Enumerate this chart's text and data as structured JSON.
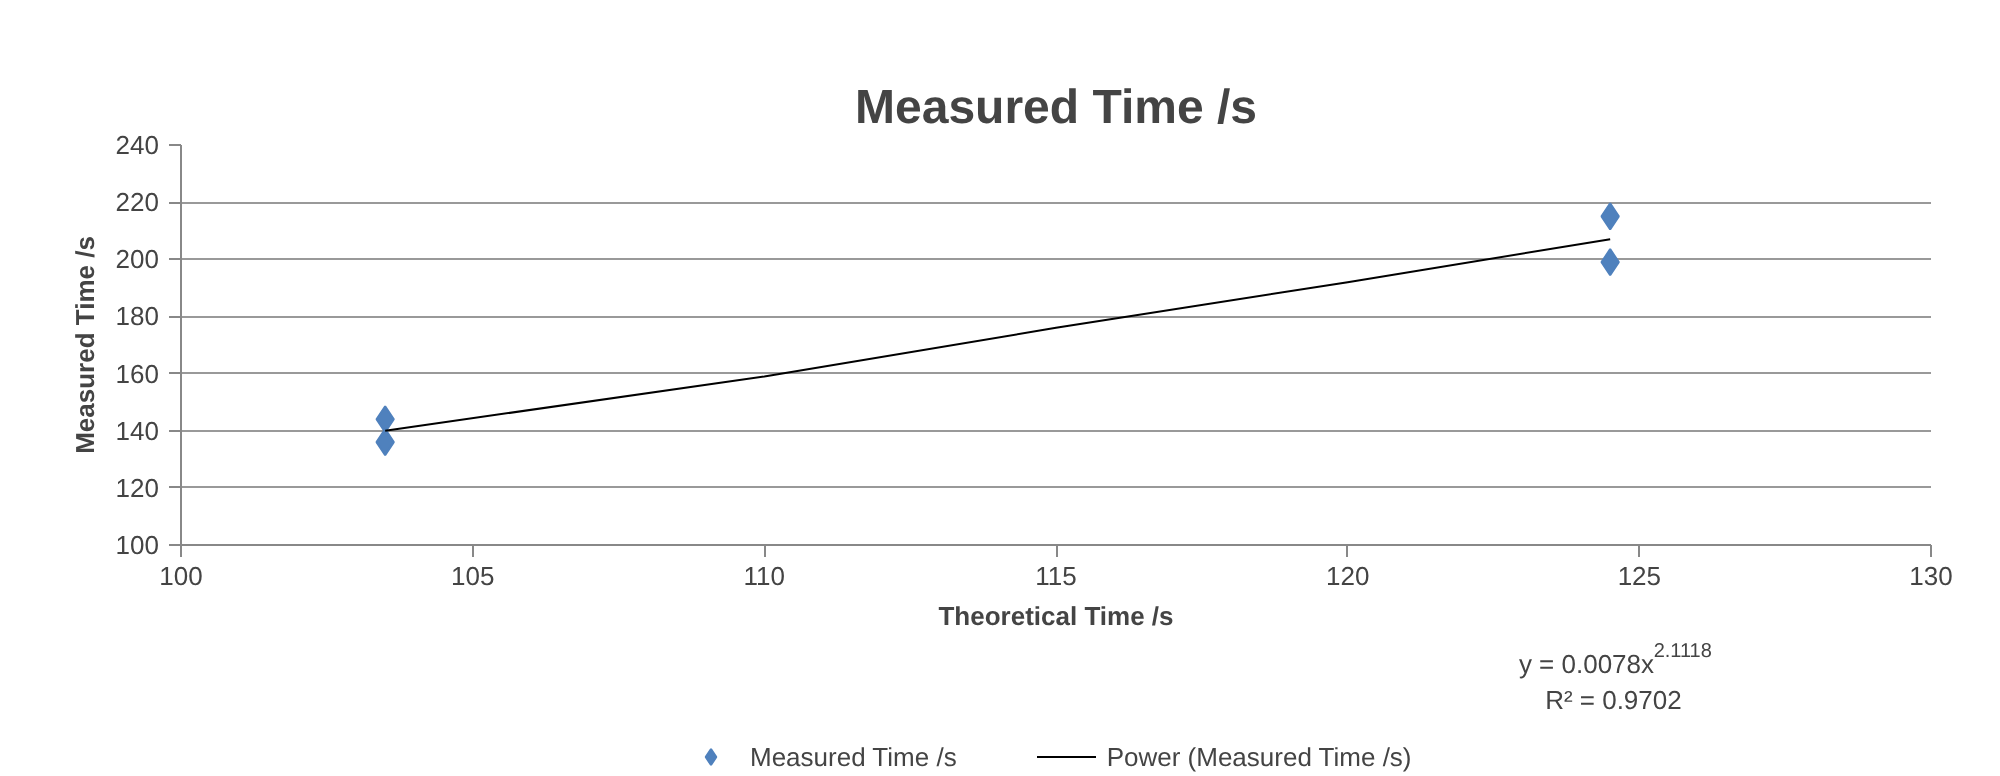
{
  "chart_data": {
    "type": "scatter",
    "title": "Measured Time /s",
    "xlabel": "Theoretical Time /s",
    "ylabel": "Measured Time /s",
    "series": [
      {
        "name": "Measured Time /s",
        "type": "scatter",
        "color": "#4f81bd",
        "marker": "diamond",
        "x": [
          103.5,
          103.5,
          124.5,
          124.5
        ],
        "values": [
          144,
          136,
          215,
          199
        ]
      },
      {
        "name": "Power (Measured Time /s)",
        "type": "line",
        "color": "#000000",
        "line_style": "solid",
        "x": [
          103.5,
          110,
          115,
          120,
          124.5
        ],
        "values": [
          140,
          159,
          176,
          192,
          207
        ]
      }
    ],
    "xlim": [
      100,
      130
    ],
    "xticks": [
      100,
      105,
      110,
      115,
      120,
      125,
      130
    ],
    "ylim": [
      100,
      240
    ],
    "yticks": [
      100,
      120,
      140,
      160,
      180,
      200,
      220,
      240
    ],
    "grid": "y",
    "legend": "bottom",
    "annotations": [
      "y = 0.0078x$^{2.1118}$",
      "R² = 0.9702"
    ]
  }
}
